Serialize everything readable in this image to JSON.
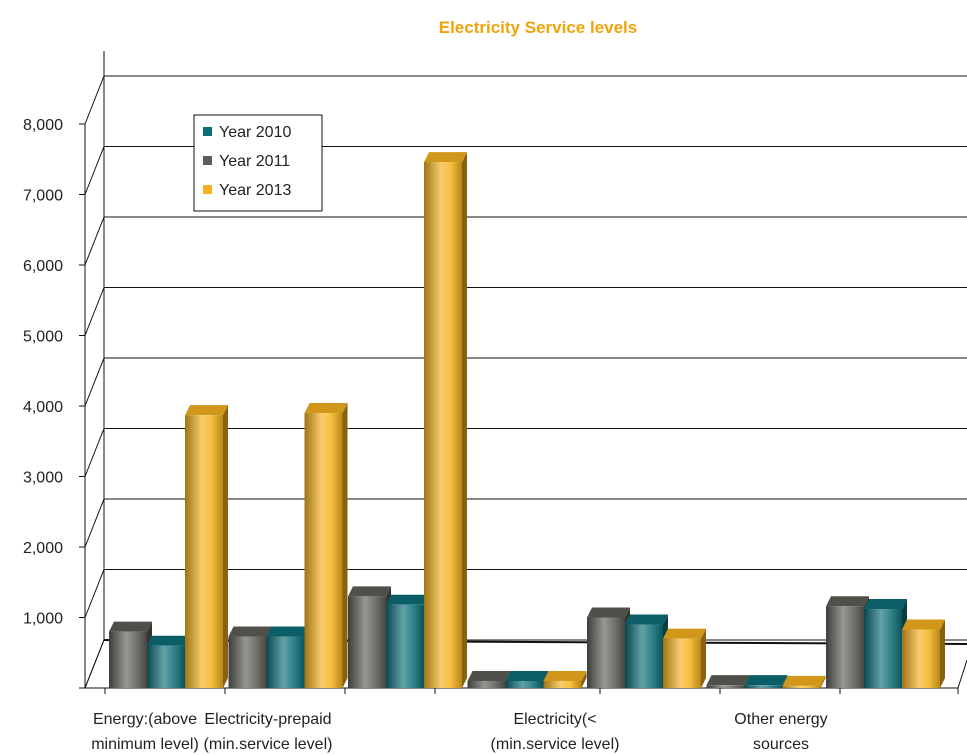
{
  "chart_data": {
    "type": "bar",
    "title": "Electricity Service levels",
    "xlabel": "",
    "ylabel": "",
    "ylim": [
      0,
      8000
    ],
    "yticks": [
      "1,000",
      "2,000",
      "3,000",
      "4,000",
      "5,000",
      "6,000",
      "7,000",
      "8,000"
    ],
    "grid": true,
    "legend_position": "top-left",
    "categories": [
      "Energy:(above minimum level)",
      "Electricity-prepaid (min.service level)",
      "",
      "Electricity(< (min.service level)",
      "",
      "Other energy sources",
      ""
    ],
    "category_label_lines": [
      [
        "Energy:(above",
        "minimum level)"
      ],
      [
        "Electricity-prepaid",
        "(min.service level)"
      ],
      [],
      [
        "Electricity(<",
        "(min.service level)"
      ],
      [],
      [
        "Other energy",
        "sources"
      ],
      []
    ],
    "series": [
      {
        "name": "Year 2011",
        "color": "#5e5e58",
        "values": [
          800,
          730,
          1300,
          100,
          1000,
          40,
          1160
        ]
      },
      {
        "name": "Year 2010",
        "color": "#0e6e78",
        "values": [
          600,
          730,
          1180,
          100,
          900,
          40,
          1120
        ]
      },
      {
        "name": "Year 2013",
        "color": "#f5b21e",
        "values": [
          3870,
          3900,
          7460,
          100,
          700,
          30,
          830
        ]
      }
    ],
    "legend": [
      {
        "name": "Year 2010",
        "color": "#0e6e78"
      },
      {
        "name": "Year 2011",
        "color": "#5e5e58"
      },
      {
        "name": "Year 2013",
        "color": "#f5b21e"
      }
    ]
  }
}
